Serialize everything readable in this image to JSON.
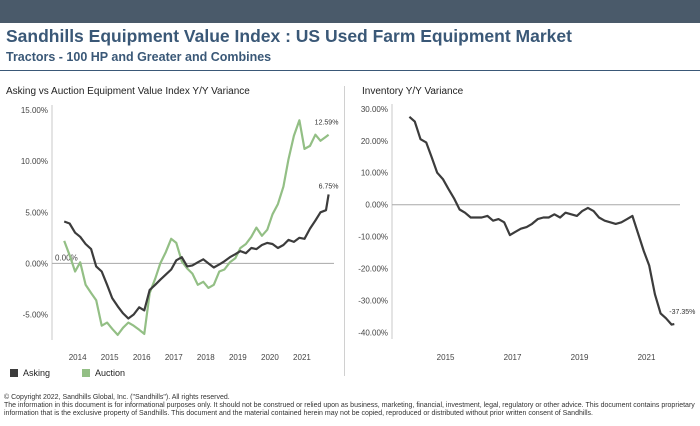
{
  "header": {
    "title": "Sandhills Equipment Value Index : US Used Farm Equipment Market",
    "subtitle": "Tractors - 100 HP and Greater and Combines"
  },
  "colors": {
    "asking": "#3c3c3c",
    "auction": "#93bf85",
    "title": "#3a5877",
    "bar": "#4a5a6a"
  },
  "legend": {
    "asking": "Asking",
    "auction": "Auction"
  },
  "footer": {
    "line1": "© Copyright 2022, Sandhills Global, Inc. (\"Sandhills\"). All rights reserved.",
    "line2": "The information in this document is for informational purposes only.  It should not be construed or relied upon as business, marketing, financial, investment, legal, regulatory or other advice. This document contains proprietary",
    "line3": "information that is the exclusive property of Sandhills. This document and the material contained herein may not be copied, reproduced or distributed without prior written consent of Sandhills."
  },
  "chart_data": [
    {
      "type": "line",
      "title": "Asking vs Auction Equipment Value Index Y/Y Variance",
      "xlim": [
        2013.2,
        2022.0
      ],
      "ylim": [
        -7.5,
        15.5
      ],
      "grid": false,
      "yticks": [
        15,
        10,
        5,
        0,
        -5
      ],
      "yticklabels": [
        "15.00%",
        "10.00%",
        "5.00%",
        "0.00%",
        "-5.00%"
      ],
      "xticks": [
        2014,
        2015,
        2016,
        2017,
        2018,
        2019,
        2020,
        2021
      ],
      "xticklabels": [
        "2014",
        "2015",
        "2016",
        "2017",
        "2018",
        "2019",
        "2020",
        "2021"
      ],
      "reference_line": {
        "y": 0,
        "label": "0.00%"
      },
      "series": [
        {
          "name": "Asking",
          "end_label": "6.75%",
          "x": [
            2013.58,
            2013.75,
            2013.92,
            2014.08,
            2014.25,
            2014.42,
            2014.58,
            2014.75,
            2014.92,
            2015.08,
            2015.25,
            2015.42,
            2015.58,
            2015.75,
            2015.92,
            2016.08,
            2016.25,
            2016.42,
            2016.58,
            2016.75,
            2016.92,
            2017.08,
            2017.25,
            2017.42,
            2017.58,
            2017.75,
            2017.92,
            2018.08,
            2018.25,
            2018.42,
            2018.58,
            2018.75,
            2018.92,
            2019.08,
            2019.25,
            2019.42,
            2019.58,
            2019.75,
            2019.92,
            2020.08,
            2020.25,
            2020.42,
            2020.58,
            2020.75,
            2020.92,
            2021.08,
            2021.25,
            2021.42,
            2021.58,
            2021.75,
            2021.83
          ],
          "y": [
            4.1,
            3.9,
            3.0,
            2.6,
            1.9,
            1.4,
            -0.3,
            -0.8,
            -2.1,
            -3.4,
            -4.2,
            -4.9,
            -5.4,
            -5.0,
            -4.3,
            -4.6,
            -2.6,
            -2.1,
            -1.6,
            -1.1,
            -0.6,
            0.3,
            0.6,
            -0.3,
            -0.2,
            0.1,
            0.4,
            0.0,
            -0.4,
            -0.1,
            0.2,
            0.6,
            0.9,
            1.2,
            1.0,
            1.5,
            1.4,
            1.8,
            2.0,
            1.9,
            1.5,
            1.8,
            2.3,
            2.1,
            2.5,
            2.4,
            3.4,
            4.2,
            5.0,
            5.2,
            6.75
          ]
        },
        {
          "name": "Auction",
          "end_label": "12.59%",
          "x": [
            2013.58,
            2013.75,
            2013.92,
            2014.08,
            2014.25,
            2014.42,
            2014.58,
            2014.75,
            2014.92,
            2015.08,
            2015.25,
            2015.42,
            2015.58,
            2015.75,
            2015.92,
            2016.08,
            2016.25,
            2016.42,
            2016.58,
            2016.75,
            2016.92,
            2017.08,
            2017.25,
            2017.42,
            2017.58,
            2017.75,
            2017.92,
            2018.08,
            2018.25,
            2018.42,
            2018.58,
            2018.75,
            2018.92,
            2019.08,
            2019.25,
            2019.42,
            2019.58,
            2019.75,
            2019.92,
            2020.08,
            2020.25,
            2020.42,
            2020.58,
            2020.75,
            2020.92,
            2021.08,
            2021.25,
            2021.42,
            2021.58,
            2021.75,
            2021.83
          ],
          "y": [
            2.2,
            0.8,
            -0.8,
            0.1,
            -2.1,
            -2.9,
            -3.6,
            -6.1,
            -5.8,
            -6.4,
            -7.0,
            -6.3,
            -5.8,
            -6.1,
            -6.5,
            -6.9,
            -2.9,
            -1.5,
            0.0,
            1.1,
            2.4,
            2.0,
            0.2,
            -0.5,
            -1.0,
            -2.1,
            -1.8,
            -2.4,
            -2.1,
            -0.8,
            -0.6,
            0.1,
            0.5,
            1.5,
            1.9,
            2.6,
            3.5,
            2.7,
            3.3,
            4.8,
            5.8,
            7.5,
            10.2,
            12.5,
            14.0,
            11.2,
            11.5,
            12.59,
            12.0,
            12.4,
            12.59
          ]
        }
      ]
    },
    {
      "type": "line",
      "title": "Inventory Y/Y Variance",
      "xlim": [
        2013.4,
        2022.0
      ],
      "ylim": [
        -42,
        31.5
      ],
      "grid": false,
      "yticks": [
        30,
        20,
        10,
        0,
        -10,
        -20,
        -30,
        -40
      ],
      "yticklabels": [
        "30.00%",
        "20.00%",
        "10.00%",
        "0.00%",
        "-10.00%",
        "-20.00%",
        "-30.00%",
        "-40.00%"
      ],
      "xticks": [
        2015,
        2017,
        2019,
        2021
      ],
      "xticklabels": [
        "2015",
        "2017",
        "2019",
        "2021"
      ],
      "reference_line": {
        "y": 0,
        "label": ""
      },
      "series": [
        {
          "name": "",
          "end_label": "-37.35%",
          "x": [
            2013.92,
            2014.08,
            2014.25,
            2014.42,
            2014.58,
            2014.75,
            2014.92,
            2015.08,
            2015.25,
            2015.42,
            2015.58,
            2015.75,
            2015.92,
            2016.08,
            2016.25,
            2016.42,
            2016.58,
            2016.75,
            2016.92,
            2017.08,
            2017.25,
            2017.42,
            2017.58,
            2017.75,
            2017.92,
            2018.08,
            2018.25,
            2018.42,
            2018.58,
            2018.75,
            2018.92,
            2019.08,
            2019.25,
            2019.42,
            2019.58,
            2019.75,
            2019.92,
            2020.08,
            2020.25,
            2020.42,
            2020.58,
            2020.75,
            2020.92,
            2021.08,
            2021.25,
            2021.42,
            2021.58,
            2021.75,
            2021.83
          ],
          "y": [
            27.5,
            26.0,
            20.5,
            19.5,
            15.0,
            10.0,
            8.0,
            5.0,
            2.0,
            -1.5,
            -2.5,
            -4.0,
            -4.0,
            -4.0,
            -3.5,
            -5.0,
            -4.5,
            -5.5,
            -9.5,
            -8.5,
            -7.5,
            -7.0,
            -6.0,
            -4.5,
            -4.0,
            -4.0,
            -3.0,
            -4.0,
            -2.5,
            -3.0,
            -3.5,
            -2.0,
            -1.0,
            -2.0,
            -4.0,
            -5.0,
            -5.5,
            -6.0,
            -5.5,
            -4.5,
            -3.5,
            -9.0,
            -14.5,
            -19.0,
            -28.0,
            -34.0,
            -35.5,
            -37.5,
            -37.35
          ]
        }
      ]
    }
  ]
}
